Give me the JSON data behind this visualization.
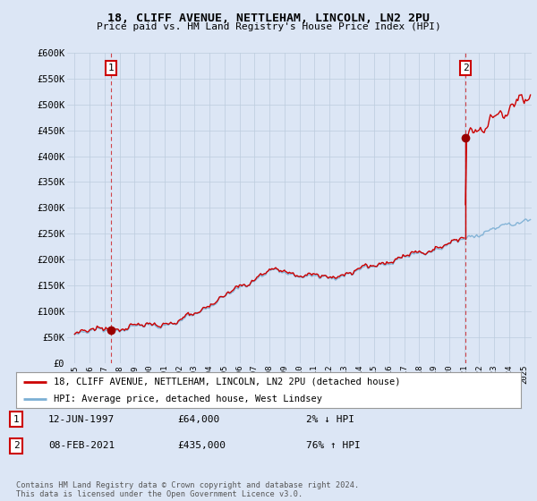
{
  "title": "18, CLIFF AVENUE, NETTLEHAM, LINCOLN, LN2 2PU",
  "subtitle": "Price paid vs. HM Land Registry's House Price Index (HPI)",
  "ylabel_ticks": [
    "£0",
    "£50K",
    "£100K",
    "£150K",
    "£200K",
    "£250K",
    "£300K",
    "£350K",
    "£400K",
    "£450K",
    "£500K",
    "£550K",
    "£600K"
  ],
  "ylim": [
    0,
    600000
  ],
  "ytick_vals": [
    0,
    50000,
    100000,
    150000,
    200000,
    250000,
    300000,
    350000,
    400000,
    450000,
    500000,
    550000,
    600000
  ],
  "xmin": 1994.5,
  "xmax": 2025.5,
  "purchase1_x": 1997.44,
  "purchase1_y": 64000,
  "purchase2_x": 2021.1,
  "purchase2_y": 435000,
  "legend_line1": "18, CLIFF AVENUE, NETTLEHAM, LINCOLN, LN2 2PU (detached house)",
  "legend_line2": "HPI: Average price, detached house, West Lindsey",
  "note1_num": "1",
  "note1_date": "12-JUN-1997",
  "note1_price": "£64,000",
  "note1_hpi": "2% ↓ HPI",
  "note2_num": "2",
  "note2_date": "08-FEB-2021",
  "note2_price": "£435,000",
  "note2_hpi": "76% ↑ HPI",
  "footer": "Contains HM Land Registry data © Crown copyright and database right 2024.\nThis data is licensed under the Open Government Licence v3.0.",
  "bg_color": "#dce6f5",
  "plot_bg_color": "#dce6f5",
  "hpi_line_color": "#7bafd4",
  "price_line_color": "#cc0000",
  "dot_color": "#990000",
  "vline_color": "#cc0000",
  "label_box_color": "#cc0000",
  "grid_color": "#bbccdd"
}
